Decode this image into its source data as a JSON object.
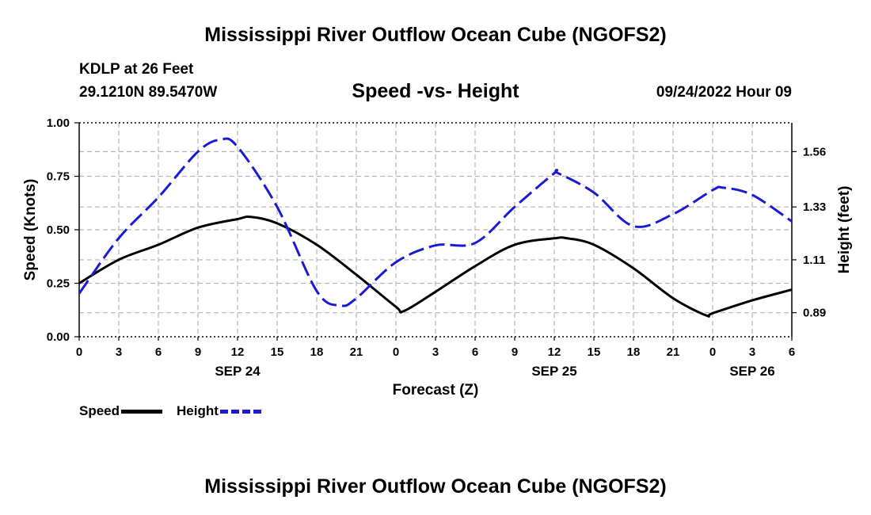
{
  "header": {
    "title": "Mississippi River Outflow Ocean Cube (NGOFS2)",
    "station": "KDLP at 26 Feet",
    "coords": "29.1210N  89.5470W",
    "subtitle": "Speed -vs- Height",
    "datestamp": "09/24/2022 Hour 09"
  },
  "footer": {
    "title": "Mississippi River Outflow Ocean Cube (NGOFS2)"
  },
  "legend": {
    "speed_label": "Speed",
    "height_label": "Height"
  },
  "colors": {
    "speed": "#000000",
    "height": "#1a1ad2",
    "grid": "#b4b4b4"
  },
  "chart_data": {
    "type": "line",
    "title": "Speed -vs- Height",
    "xlabel": "Forecast (Z)",
    "ylabel": "Speed (Knots)",
    "y2label": "Height (feet)",
    "x_unit": "hours from SEP 24 00Z",
    "xlim": [
      0,
      54
    ],
    "ylim": [
      0,
      1
    ],
    "y2lim": [
      0.79,
      1.68
    ],
    "x_ticks": [
      0,
      3,
      6,
      9,
      12,
      15,
      18,
      21,
      24,
      27,
      30,
      33,
      36,
      39,
      42,
      45,
      48,
      51,
      54
    ],
    "x_tick_labels": [
      "0",
      "3",
      "6",
      "9",
      "12",
      "15",
      "18",
      "21",
      "0",
      "3",
      "6",
      "9",
      "12",
      "15",
      "18",
      "21",
      "0",
      "3",
      "6"
    ],
    "day_labels": [
      {
        "x": 12,
        "label": "SEP 24"
      },
      {
        "x": 36,
        "label": "SEP 25"
      },
      {
        "x": 51,
        "label": "SEP 26"
      }
    ],
    "y_ticks": [
      0,
      0.25,
      0.5,
      0.75,
      1.0
    ],
    "y_tick_labels": [
      "0.00",
      "0.25",
      "0.50",
      "0.75",
      "1.00"
    ],
    "y2_ticks": [
      0.89,
      1.11,
      1.33,
      1.56
    ],
    "y2_tick_labels": [
      "0.89",
      "1.11",
      "1.33",
      "1.56"
    ],
    "series": [
      {
        "name": "Speed",
        "axis": "left",
        "style": "solid",
        "x": [
          0,
          3,
          6,
          9,
          12,
          13,
          15,
          18,
          21,
          24,
          24.6,
          27,
          30,
          33,
          36,
          37,
          39,
          42,
          45,
          47.5,
          48,
          51,
          54
        ],
        "y": [
          0.25,
          0.36,
          0.43,
          0.51,
          0.55,
          0.56,
          0.53,
          0.43,
          0.29,
          0.14,
          0.12,
          0.21,
          0.33,
          0.43,
          0.46,
          0.46,
          0.43,
          0.32,
          0.18,
          0.1,
          0.11,
          0.17,
          0.22
        ]
      },
      {
        "name": "Height",
        "axis": "right",
        "style": "dashed",
        "x": [
          0,
          3,
          6,
          9,
          10.7,
          12,
          15,
          18,
          19.8,
          21,
          24,
          27,
          30,
          33,
          36,
          36.3,
          39,
          42,
          45,
          48,
          48.8,
          51,
          54
        ],
        "y": [
          0.97,
          1.2,
          1.37,
          1.56,
          1.61,
          1.58,
          1.33,
          0.98,
          0.92,
          0.95,
          1.1,
          1.17,
          1.18,
          1.33,
          1.47,
          1.47,
          1.39,
          1.25,
          1.3,
          1.4,
          1.41,
          1.38,
          1.27
        ]
      }
    ]
  }
}
